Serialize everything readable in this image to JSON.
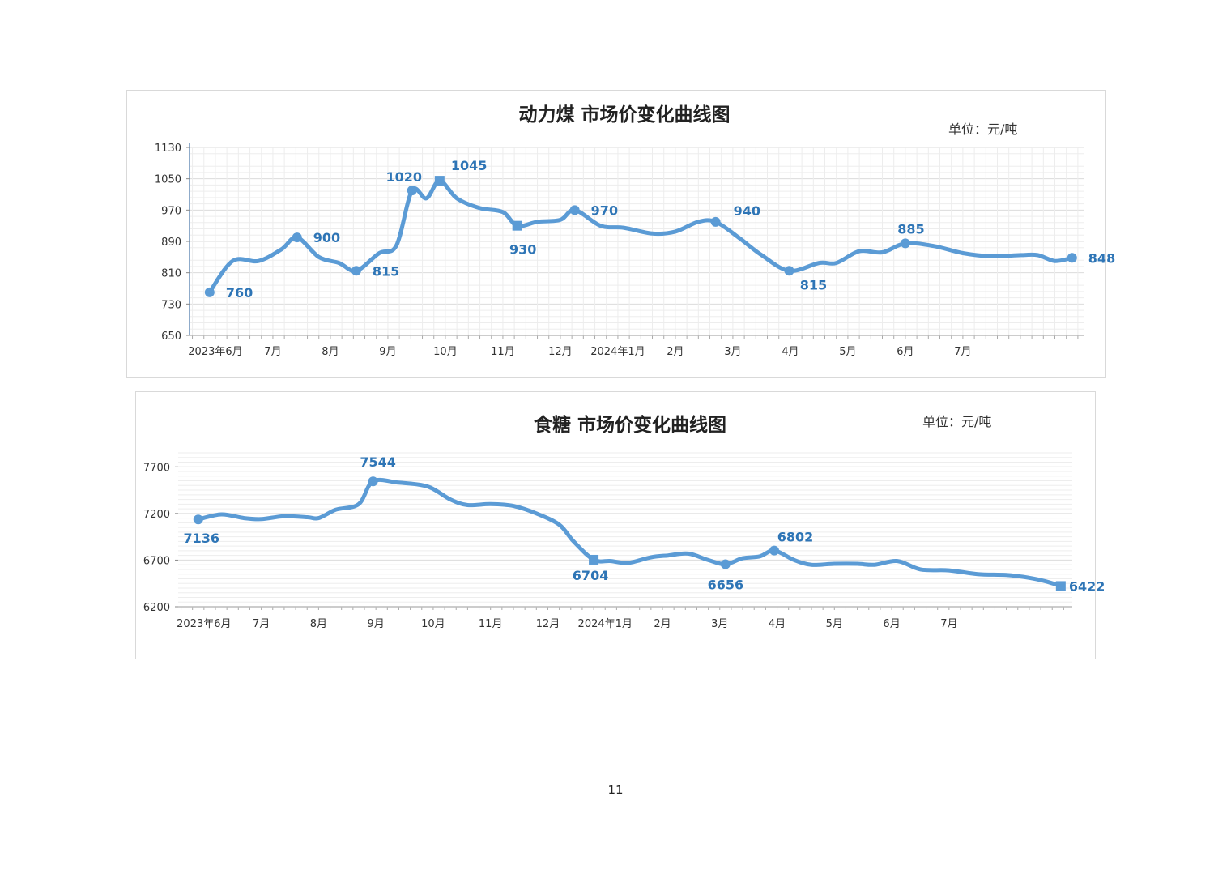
{
  "colors": {
    "line": "#5b9bd5",
    "label": "#2e75b6",
    "grid_minor": "#ededed",
    "grid_major": "#dcdcdc"
  },
  "page_number": "11",
  "chart_data": [
    {
      "type": "line",
      "title": "动力煤 市场价变化曲线图",
      "unit": "单位：元/吨",
      "ylim": [
        650,
        1130
      ],
      "yticks": [
        650,
        730,
        810,
        890,
        970,
        1050,
        1130
      ],
      "grid": true,
      "xlim": [
        -0.45,
        15.1
      ],
      "xtick_labels": [
        {
          "x": 0,
          "label": "2023年6月"
        },
        {
          "x": 1,
          "label": "7月"
        },
        {
          "x": 2,
          "label": "8月"
        },
        {
          "x": 3,
          "label": "9月"
        },
        {
          "x": 4,
          "label": "10月"
        },
        {
          "x": 5,
          "label": "11月"
        },
        {
          "x": 6,
          "label": "12月"
        },
        {
          "x": 7,
          "label": "2024年1月"
        },
        {
          "x": 8,
          "label": "2月"
        },
        {
          "x": 9,
          "label": "3月"
        },
        {
          "x": 10,
          "label": "4月"
        },
        {
          "x": 11,
          "label": "5月"
        },
        {
          "x": 12,
          "label": "6月"
        },
        {
          "x": 13,
          "label": "7月"
        }
      ],
      "series": [
        {
          "x": [
            -0.1,
            0.3,
            0.75,
            1.15,
            1.42,
            1.8,
            2.15,
            2.45,
            2.85,
            3.15,
            3.42,
            3.67,
            3.9,
            4.2,
            4.6,
            5.0,
            5.25,
            5.6,
            6.0,
            6.25,
            6.7,
            7.1,
            7.6,
            8.0,
            8.4,
            8.7,
            9.1,
            9.5,
            9.98,
            10.5,
            10.8,
            11.2,
            11.6,
            12.0,
            12.5,
            13.0,
            13.5,
            14.0,
            14.3,
            14.6,
            14.9
          ],
          "values": [
            760,
            840,
            840,
            870,
            900,
            850,
            835,
            815,
            860,
            880,
            1020,
            1000,
            1045,
            1000,
            975,
            965,
            930,
            940,
            945,
            970,
            930,
            925,
            910,
            915,
            940,
            940,
            900,
            855,
            815,
            835,
            835,
            865,
            862,
            885,
            878,
            860,
            852,
            855,
            855,
            840,
            848
          ]
        }
      ],
      "markers": [
        {
          "x": -0.1,
          "value": 760,
          "label": "760",
          "shape": "circle"
        },
        {
          "x": 1.42,
          "value": 900,
          "label": "900",
          "shape": "circle"
        },
        {
          "x": 2.45,
          "value": 815,
          "label": "815",
          "shape": "circle"
        },
        {
          "x": 3.42,
          "value": 1020,
          "label": "1020",
          "shape": "circle"
        },
        {
          "x": 3.9,
          "value": 1045,
          "label": "1045",
          "shape": "square"
        },
        {
          "x": 5.25,
          "value": 930,
          "label": "930",
          "shape": "square"
        },
        {
          "x": 6.25,
          "value": 970,
          "label": "970",
          "shape": "circle"
        },
        {
          "x": 8.7,
          "value": 940,
          "label": "940",
          "shape": "circle"
        },
        {
          "x": 9.98,
          "value": 815,
          "label": "815",
          "shape": "circle"
        },
        {
          "x": 12.0,
          "value": 885,
          "label": "885",
          "shape": "circle"
        },
        {
          "x": 14.9,
          "value": 848,
          "label": "848",
          "shape": "circle"
        }
      ]
    },
    {
      "type": "line",
      "title": "食糖 市场价变化曲线图",
      "unit": "单位：元/吨",
      "ylim": [
        6200,
        7850
      ],
      "yticks": [
        6200,
        6700,
        7200,
        7700
      ],
      "grid": true,
      "xlim": [
        -0.45,
        15.15
      ],
      "xtick_labels": [
        {
          "x": 0,
          "label": "2023年6月"
        },
        {
          "x": 1,
          "label": "7月"
        },
        {
          "x": 2,
          "label": "8月"
        },
        {
          "x": 3,
          "label": "9月"
        },
        {
          "x": 4,
          "label": "10月"
        },
        {
          "x": 5,
          "label": "11月"
        },
        {
          "x": 6,
          "label": "12月"
        },
        {
          "x": 7,
          "label": "2024年1月"
        },
        {
          "x": 8,
          "label": "2月"
        },
        {
          "x": 9,
          "label": "3月"
        },
        {
          "x": 10,
          "label": "4月"
        },
        {
          "x": 11,
          "label": "5月"
        },
        {
          "x": 12,
          "label": "6月"
        },
        {
          "x": 13,
          "label": "7月"
        }
      ],
      "series": [
        {
          "x": [
            -0.1,
            0.3,
            0.7,
            1.0,
            1.4,
            1.8,
            2.0,
            2.3,
            2.7,
            2.95,
            3.4,
            3.9,
            4.3,
            4.6,
            5.0,
            5.4,
            5.8,
            6.2,
            6.45,
            6.8,
            7.1,
            7.4,
            7.8,
            8.1,
            8.45,
            8.8,
            9.1,
            9.4,
            9.7,
            9.95,
            10.3,
            10.6,
            11.0,
            11.4,
            11.7,
            12.1,
            12.5,
            13.0,
            13.5,
            14.0,
            14.4,
            14.7,
            14.95
          ],
          "values": [
            7136,
            7190,
            7150,
            7140,
            7170,
            7160,
            7150,
            7240,
            7300,
            7544,
            7530,
            7490,
            7350,
            7290,
            7300,
            7280,
            7200,
            7080,
            6900,
            6704,
            6690,
            6670,
            6730,
            6750,
            6770,
            6700,
            6656,
            6720,
            6740,
            6802,
            6700,
            6650,
            6660,
            6660,
            6650,
            6690,
            6600,
            6590,
            6550,
            6540,
            6510,
            6470,
            6422
          ]
        }
      ],
      "markers": [
        {
          "x": -0.1,
          "value": 7136,
          "label": "7136",
          "shape": "circle"
        },
        {
          "x": 2.95,
          "value": 7544,
          "label": "7544",
          "shape": "circle"
        },
        {
          "x": 6.8,
          "value": 6704,
          "label": "6704",
          "shape": "square"
        },
        {
          "x": 9.1,
          "value": 6656,
          "label": "6656",
          "shape": "circle"
        },
        {
          "x": 9.95,
          "value": 6802,
          "label": "6802",
          "shape": "circle"
        },
        {
          "x": 14.95,
          "value": 6422,
          "label": "6422",
          "shape": "square"
        }
      ]
    }
  ]
}
